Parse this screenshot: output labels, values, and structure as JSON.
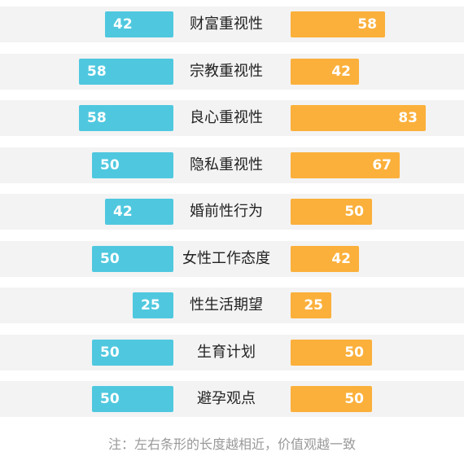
{
  "chart_data": {
    "type": "bar",
    "categories": [
      "财富重视性",
      "宗教重视性",
      "良心重视性",
      "隐私重视性",
      "婚前性行为",
      "女性工作态度",
      "性生活期望",
      "生育计划",
      "避孕观点"
    ],
    "series": [
      {
        "values": [
          42,
          58,
          58,
          50,
          42,
          50,
          25,
          50,
          50
        ],
        "color": "#4fc8df"
      },
      {
        "values": [
          58,
          42,
          83,
          67,
          50,
          42,
          25,
          50,
          50
        ],
        "color": "#fbb03b"
      }
    ],
    "note": "注：左右条形的长度越相近，价值观越一致"
  },
  "colors": {
    "left": "#4fc8df",
    "right": "#fbb03b",
    "row_bg": "#f3f3f3"
  }
}
